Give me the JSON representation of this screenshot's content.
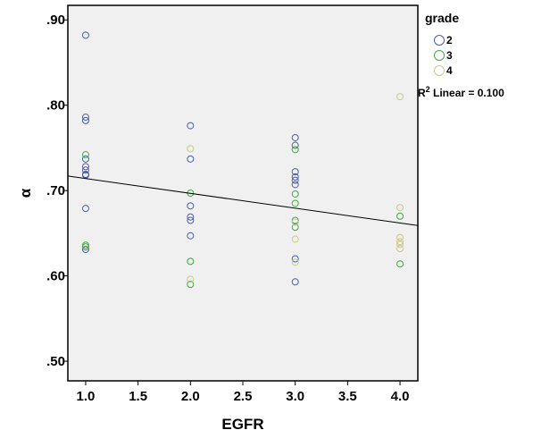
{
  "chart_data": {
    "type": "scatter",
    "xlabel": "EGFR",
    "ylabel": "α",
    "xlim": [
      0.83,
      4.17
    ],
    "ylim": [
      0.477,
      0.917
    ],
    "x_ticks": [
      1.0,
      1.5,
      2.0,
      2.5,
      3.0,
      3.5,
      4.0
    ],
    "x_tick_labels": [
      "1.0",
      "1.5",
      "2.0",
      "2.5",
      "3.0",
      "3.5",
      "4.0"
    ],
    "y_ticks": [
      0.9,
      0.8,
      0.7,
      0.6,
      0.5
    ],
    "y_tick_labels": [
      ".90",
      ".80",
      ".70",
      ".60",
      ".50"
    ],
    "grid": false,
    "legend": {
      "title": "grade",
      "placement": "right",
      "entries": [
        "2",
        "3",
        "4"
      ]
    },
    "series": [
      {
        "name": "2",
        "color": "#4a5fa8",
        "points": [
          [
            1,
            0.882
          ],
          [
            1,
            0.786
          ],
          [
            1,
            0.782
          ],
          [
            1,
            0.737
          ],
          [
            1,
            0.728
          ],
          [
            1,
            0.724
          ],
          [
            1,
            0.719
          ],
          [
            1,
            0.718
          ],
          [
            1,
            0.679
          ],
          [
            1,
            0.631
          ],
          [
            2,
            0.776
          ],
          [
            2,
            0.737
          ],
          [
            2,
            0.682
          ],
          [
            2,
            0.669
          ],
          [
            2,
            0.665
          ],
          [
            2,
            0.647
          ],
          [
            3,
            0.762
          ],
          [
            3,
            0.753
          ],
          [
            3,
            0.722
          ],
          [
            3,
            0.716
          ],
          [
            3,
            0.712
          ],
          [
            3,
            0.707
          ],
          [
            3,
            0.62
          ],
          [
            3,
            0.593
          ]
        ]
      },
      {
        "name": "3",
        "color": "#3faa3f",
        "points": [
          [
            1,
            0.742
          ],
          [
            1,
            0.636
          ],
          [
            1,
            0.634
          ],
          [
            2,
            0.697
          ],
          [
            2,
            0.617
          ],
          [
            2,
            0.59
          ],
          [
            3,
            0.748
          ],
          [
            3,
            0.696
          ],
          [
            3,
            0.685
          ],
          [
            3,
            0.665
          ],
          [
            3,
            0.657
          ],
          [
            4,
            0.67
          ],
          [
            4,
            0.614
          ]
        ]
      },
      {
        "name": "4",
        "color": "#c9c98a",
        "points": [
          [
            2,
            0.749
          ],
          [
            2,
            0.596
          ],
          [
            3,
            0.663
          ],
          [
            3,
            0.643
          ],
          [
            3,
            0.616
          ],
          [
            4,
            0.81
          ],
          [
            4,
            0.68
          ],
          [
            4,
            0.645
          ],
          [
            4,
            0.64
          ],
          [
            4,
            0.637
          ],
          [
            4,
            0.632
          ]
        ]
      }
    ],
    "fit_line": {
      "label_prefix": "R",
      "label_sup": "2",
      "label_suffix": " Linear = 0.100",
      "points": [
        [
          0.83,
          0.717
        ],
        [
          4.17,
          0.659
        ]
      ]
    },
    "colors": {
      "plot_background": "#f0f0f0",
      "frame": "#000000",
      "fit_line": "#000000"
    }
  }
}
